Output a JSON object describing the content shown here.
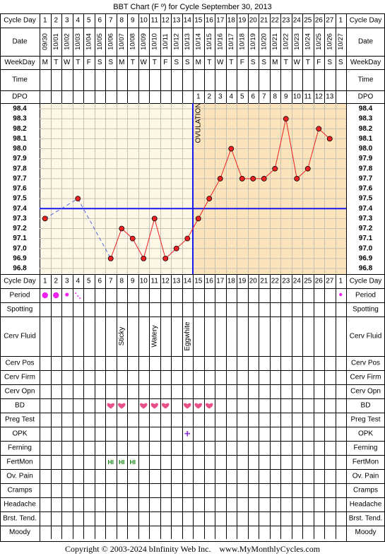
{
  "title": "BBT Chart (F º) for Cycle September 30, 2013",
  "colors": {
    "pre_ovulation_bg": "#fdf7e8",
    "post_ovulation_bg": "#fbe3bc",
    "line": "#ee2222",
    "coverline": "#1a1aee",
    "grid": "#000000",
    "heart": "#e8508a",
    "period_dot": "#ee22ee",
    "opk_plus": "#8833cc",
    "fertmon": "#118811"
  },
  "rows": {
    "cycle_day": "Cycle Day",
    "date": "Date",
    "weekday": "WeekDay",
    "time": "Time",
    "dpo": "DPO",
    "period": "Period",
    "spotting": "Spotting",
    "cerv_fluid": "Cerv Fluid",
    "cerv_pos": "Cerv Pos",
    "cerv_firm": "Cerv Firm",
    "cerv_opn": "Cerv Opn",
    "bd": "BD",
    "preg_test": "Preg Test",
    "opk": "OPK",
    "ferning": "Ferning",
    "fertmon": "FertMon",
    "ov_pain": "Ov. Pain",
    "cramps": "Cramps",
    "headache": "Headache",
    "brst_tend": "Brst. Tend.",
    "moody": "Moody"
  },
  "cycle_days": [
    "1",
    "2",
    "3",
    "4",
    "5",
    "6",
    "7",
    "8",
    "9",
    "10",
    "11",
    "12",
    "13",
    "14",
    "15",
    "16",
    "17",
    "18",
    "19",
    "20",
    "21",
    "22",
    "23",
    "24",
    "25",
    "26",
    "27",
    "1"
  ],
  "dates": [
    "09/30",
    "10/01",
    "10/02",
    "10/03",
    "10/04",
    "10/05",
    "10/06",
    "10/07",
    "10/08",
    "10/09",
    "10/10",
    "10/11",
    "10/12",
    "10/13",
    "10/14",
    "10/15",
    "10/16",
    "10/17",
    "10/18",
    "10/19",
    "10/20",
    "10/21",
    "10/22",
    "10/23",
    "10/24",
    "10/25",
    "10/26",
    "10/27"
  ],
  "weekdays": [
    "M",
    "T",
    "W",
    "T",
    "F",
    "S",
    "S",
    "M",
    "T",
    "W",
    "T",
    "F",
    "S",
    "S",
    "M",
    "T",
    "W",
    "T",
    "F",
    "S",
    "S",
    "M",
    "T",
    "W",
    "T",
    "F",
    "S",
    "S"
  ],
  "dpo": [
    "",
    "",
    "",
    "",
    "",
    "",
    "",
    "",
    "",
    "",
    "",
    "",
    "",
    "",
    "1",
    "2",
    "3",
    "4",
    "5",
    "6",
    "7",
    "8",
    "9",
    "10",
    "11",
    "12",
    "13",
    ""
  ],
  "ovulation_label": "OVULATION",
  "period_marks": [
    "heavy",
    "heavy",
    "medium",
    "spotty",
    "",
    "",
    "",
    "",
    "",
    "",
    "",
    "",
    "",
    "",
    "",
    "",
    "",
    "",
    "",
    "",
    "",
    "",
    "",
    "",
    "",
    "",
    "",
    "light"
  ],
  "cerv_fluid": [
    "",
    "",
    "",
    "",
    "",
    "",
    "",
    "Sticky",
    "",
    "",
    "Watery",
    "",
    "",
    "Eggwhite",
    "",
    "",
    "",
    "",
    "",
    "",
    "",
    "",
    "",
    "",
    "",
    "",
    "",
    ""
  ],
  "bd": [
    false,
    false,
    false,
    false,
    false,
    false,
    true,
    true,
    false,
    true,
    true,
    true,
    false,
    true,
    true,
    true,
    false,
    false,
    false,
    false,
    false,
    false,
    false,
    false,
    false,
    false,
    false,
    false
  ],
  "opk": [
    "",
    "",
    "",
    "",
    "",
    "",
    "",
    "",
    "",
    "",
    "",
    "",
    "",
    "+",
    "",
    "",
    "",
    "",
    "",
    "",
    "",
    "",
    "",
    "",
    "",
    "",
    "",
    ""
  ],
  "fertmon": [
    "",
    "",
    "",
    "",
    "",
    "",
    "HI",
    "HI",
    "HI",
    "",
    "",
    "",
    "",
    "",
    "",
    "",
    "",
    "",
    "",
    "",
    "",
    "",
    "",
    "",
    "",
    "",
    "",
    ""
  ],
  "chart_data": {
    "type": "line",
    "title": "BBT Chart (F º) for Cycle September 30, 2013",
    "x": [
      "09/30",
      "10/01",
      "10/02",
      "10/03",
      "10/04",
      "10/05",
      "10/06",
      "10/07",
      "10/08",
      "10/09",
      "10/10",
      "10/11",
      "10/12",
      "10/13",
      "10/14",
      "10/15",
      "10/16",
      "10/17",
      "10/18",
      "10/19",
      "10/20",
      "10/21",
      "10/22",
      "10/23",
      "10/24",
      "10/25",
      "10/26",
      "10/27"
    ],
    "values": [
      97.3,
      null,
      null,
      97.5,
      null,
      null,
      96.9,
      97.2,
      97.1,
      96.9,
      97.3,
      96.9,
      97.0,
      97.1,
      97.3,
      97.5,
      97.7,
      98.0,
      97.7,
      97.7,
      97.7,
      97.8,
      98.3,
      97.7,
      97.8,
      98.2,
      98.1,
      null
    ],
    "gap_segments": [
      [
        0,
        3
      ],
      [
        3,
        6
      ]
    ],
    "coverline": 97.4,
    "ovulation_day_index": 13,
    "yticks": [
      "98.4",
      "98.3",
      "98.2",
      "98.1",
      "98.0",
      "97.9",
      "97.8",
      "97.7",
      "97.6",
      "97.5",
      "97.4",
      "97.3",
      "97.2",
      "97.1",
      "97.0",
      "96.9",
      "96.8"
    ],
    "ylim": [
      96.8,
      98.4
    ]
  },
  "footer": "Copyright © 2003-2024 bInfinity Web Inc.    www.MyMonthlyCycles.com"
}
